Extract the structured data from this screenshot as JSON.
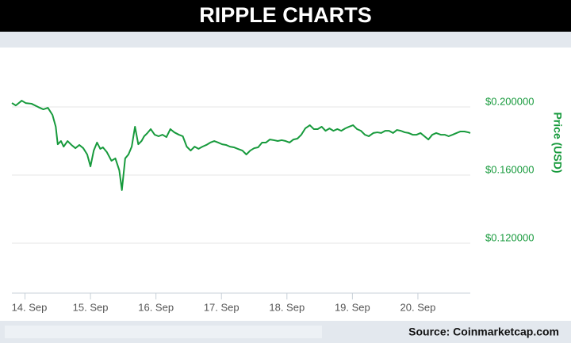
{
  "chart_data": {
    "type": "line",
    "title": "RIPPLE CHARTS",
    "y_axis_label": "Price (USD)",
    "source": "Source: Coinmarketcap.com",
    "color": "#179a3c",
    "grid": true,
    "xlim": [
      13.8,
      20.8
    ],
    "xticks": [
      {
        "value": 14,
        "label": "14. Sep"
      },
      {
        "value": 15,
        "label": "15. Sep"
      },
      {
        "value": 16,
        "label": "16. Sep"
      },
      {
        "value": 17,
        "label": "17. Sep"
      },
      {
        "value": 18,
        "label": "18. Sep"
      },
      {
        "value": 19,
        "label": "19. Sep"
      },
      {
        "value": 20,
        "label": "20. Sep"
      }
    ],
    "ylim": [
      0.0907,
      0.2349
    ],
    "yticks": [
      {
        "value": 0.2,
        "label": "$0.200000"
      },
      {
        "value": 0.16,
        "label": "$0.160000"
      },
      {
        "value": 0.12,
        "label": "$0.120000"
      }
    ],
    "x": [
      13.8,
      13.86,
      13.95,
      14.01,
      14.1,
      14.2,
      14.28,
      14.35,
      14.42,
      14.47,
      14.5,
      14.55,
      14.59,
      14.65,
      14.71,
      14.77,
      14.83,
      14.89,
      14.95,
      15.0,
      15.05,
      15.1,
      15.15,
      15.19,
      15.25,
      15.32,
      15.38,
      15.44,
      15.48,
      15.53,
      15.58,
      15.63,
      15.68,
      15.73,
      15.78,
      15.82,
      15.87,
      15.92,
      15.98,
      16.04,
      16.1,
      16.16,
      16.22,
      16.28,
      16.35,
      16.41,
      16.47,
      16.53,
      16.59,
      16.65,
      16.71,
      16.77,
      16.83,
      16.89,
      16.95,
      17.01,
      17.07,
      17.13,
      17.19,
      17.25,
      17.32,
      17.38,
      17.44,
      17.5,
      17.56,
      17.62,
      17.68,
      17.74,
      17.8,
      17.86,
      17.92,
      17.98,
      18.04,
      18.1,
      18.16,
      18.22,
      18.28,
      18.35,
      18.41,
      18.47,
      18.53,
      18.59,
      18.65,
      18.71,
      18.77,
      18.83,
      18.89,
      18.95,
      19.01,
      19.07,
      19.13,
      19.19,
      19.25,
      19.32,
      19.38,
      19.44,
      19.5,
      19.56,
      19.62,
      19.68,
      19.74,
      19.8,
      19.86,
      19.92,
      19.98,
      20.04,
      20.1,
      20.16,
      20.22,
      20.28,
      20.35,
      20.41,
      20.47,
      20.53,
      20.59,
      20.65,
      20.71,
      20.77,
      20.8
    ],
    "values": [
      0.2023,
      0.2009,
      0.2037,
      0.2023,
      0.2019,
      0.2,
      0.1986,
      0.1995,
      0.1953,
      0.1884,
      0.1781,
      0.18,
      0.1767,
      0.18,
      0.1777,
      0.1758,
      0.1777,
      0.1758,
      0.1721,
      0.1651,
      0.1744,
      0.1791,
      0.1754,
      0.1763,
      0.1735,
      0.1684,
      0.1698,
      0.1628,
      0.1512,
      0.1698,
      0.1721,
      0.1767,
      0.1884,
      0.1781,
      0.18,
      0.1828,
      0.1847,
      0.187,
      0.1837,
      0.1828,
      0.1837,
      0.1823,
      0.187,
      0.1851,
      0.1837,
      0.1828,
      0.1767,
      0.1744,
      0.1767,
      0.1754,
      0.1767,
      0.1777,
      0.1791,
      0.18,
      0.1791,
      0.1781,
      0.1777,
      0.1767,
      0.1763,
      0.1754,
      0.1744,
      0.1721,
      0.1744,
      0.1758,
      0.1763,
      0.1791,
      0.1791,
      0.1809,
      0.1805,
      0.18,
      0.1805,
      0.18,
      0.1791,
      0.1809,
      0.1814,
      0.1837,
      0.1874,
      0.1893,
      0.187,
      0.187,
      0.1884,
      0.186,
      0.1874,
      0.186,
      0.187,
      0.186,
      0.1874,
      0.1884,
      0.1893,
      0.187,
      0.186,
      0.1837,
      0.1828,
      0.1847,
      0.1851,
      0.1847,
      0.186,
      0.186,
      0.1847,
      0.1865,
      0.186,
      0.1851,
      0.1847,
      0.1837,
      0.1837,
      0.1847,
      0.1828,
      0.1809,
      0.1837,
      0.1847,
      0.1837,
      0.1837,
      0.1828,
      0.1837,
      0.1847,
      0.1856,
      0.1856,
      0.1851,
      0.1847
    ]
  }
}
